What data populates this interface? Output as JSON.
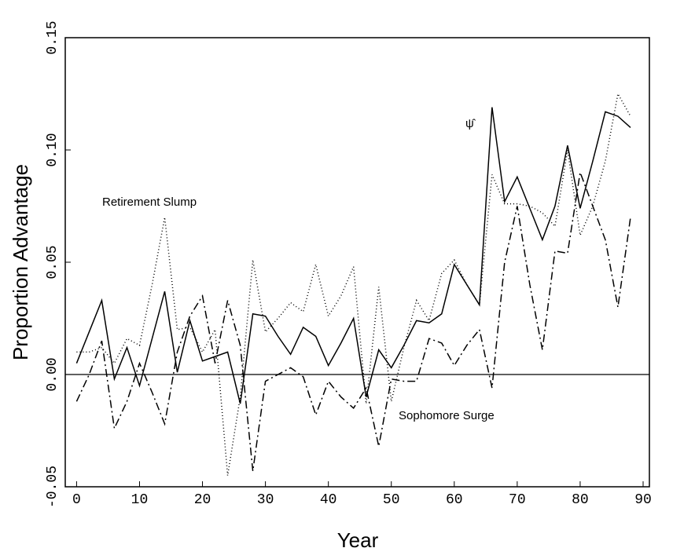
{
  "chart_data": {
    "type": "line",
    "xlabel": "Year",
    "ylabel": "Proportion Advantage",
    "annotations": [
      "Retirement Slump",
      "Sophomore Surge",
      "ψ̂"
    ],
    "x": [
      0,
      2,
      4,
      6,
      8,
      10,
      12,
      14,
      16,
      18,
      20,
      22,
      24,
      26,
      28,
      30,
      32,
      34,
      36,
      38,
      40,
      42,
      44,
      46,
      48,
      50,
      52,
      54,
      56,
      58,
      60,
      62,
      64,
      66,
      68,
      70,
      72,
      74,
      76,
      78,
      80,
      82,
      84,
      86,
      88
    ],
    "series": [
      {
        "color": "#000000",
        "dash": "none",
        "values": [
          0.005,
          0.019,
          0.033,
          -0.002,
          0.012,
          -0.005,
          0.016,
          0.037,
          0.001,
          0.024,
          0.006,
          0.008,
          0.01,
          -0.013,
          0.027,
          0.026,
          0.017,
          0.009,
          0.021,
          0.017,
          0.004,
          0.014,
          0.025,
          -0.01,
          0.011,
          0.003,
          0.013,
          0.024,
          0.023,
          0.027,
          0.049,
          0.04,
          0.031,
          0.119,
          0.077,
          0.088,
          0.074,
          0.06,
          0.075,
          0.102,
          0.074,
          0.095,
          0.117,
          0.115,
          0.11
        ]
      },
      {
        "color": "#000000",
        "dash": "1 3",
        "values": [
          0.01,
          0.01,
          0.012,
          0.005,
          0.016,
          0.013,
          0.04,
          0.07,
          0.02,
          0.021,
          0.01,
          0.02,
          -0.045,
          -0.01,
          0.051,
          0.019,
          0.025,
          0.032,
          0.028,
          0.049,
          0.026,
          0.035,
          0.048,
          -0.013,
          0.039,
          -0.012,
          0.012,
          0.033,
          0.024,
          0.045,
          0.051,
          0.04,
          0.031,
          0.089,
          0.076,
          0.076,
          0.075,
          0.072,
          0.066,
          0.1,
          0.062,
          0.075,
          0.095,
          0.125,
          0.115
        ]
      },
      {
        "color": "#000000",
        "dash": "10 4 2 4",
        "values": [
          -0.012,
          0.0,
          0.015,
          -0.024,
          -0.012,
          0.005,
          -0.008,
          -0.022,
          0.01,
          0.026,
          0.035,
          0.005,
          0.033,
          0.013,
          -0.043,
          -0.003,
          0.0,
          0.003,
          -0.001,
          -0.018,
          -0.003,
          -0.01,
          -0.015,
          -0.006,
          -0.032,
          -0.002,
          -0.003,
          -0.003,
          0.016,
          0.014,
          0.004,
          0.013,
          0.02,
          -0.006,
          0.05,
          0.075,
          0.04,
          0.011,
          0.055,
          0.054,
          0.09,
          0.075,
          0.06,
          0.03,
          0.07
        ]
      }
    ],
    "xlim": [
      -1.8,
      91
    ],
    "xticks": [
      0,
      10,
      20,
      30,
      40,
      50,
      60,
      70,
      80,
      90
    ],
    "ylim": [
      -0.05,
      0.15
    ],
    "yticks": [
      {
        "value": -0.05,
        "label": "-0.05"
      },
      {
        "value": 0,
        "label": "0.00"
      },
      {
        "value": 0.05,
        "label": "0.05"
      },
      {
        "value": 0.1,
        "label": "0.10"
      },
      {
        "value": 0.15,
        "label": "0.15"
      }
    ],
    "zero_line": true,
    "grid": false
  }
}
